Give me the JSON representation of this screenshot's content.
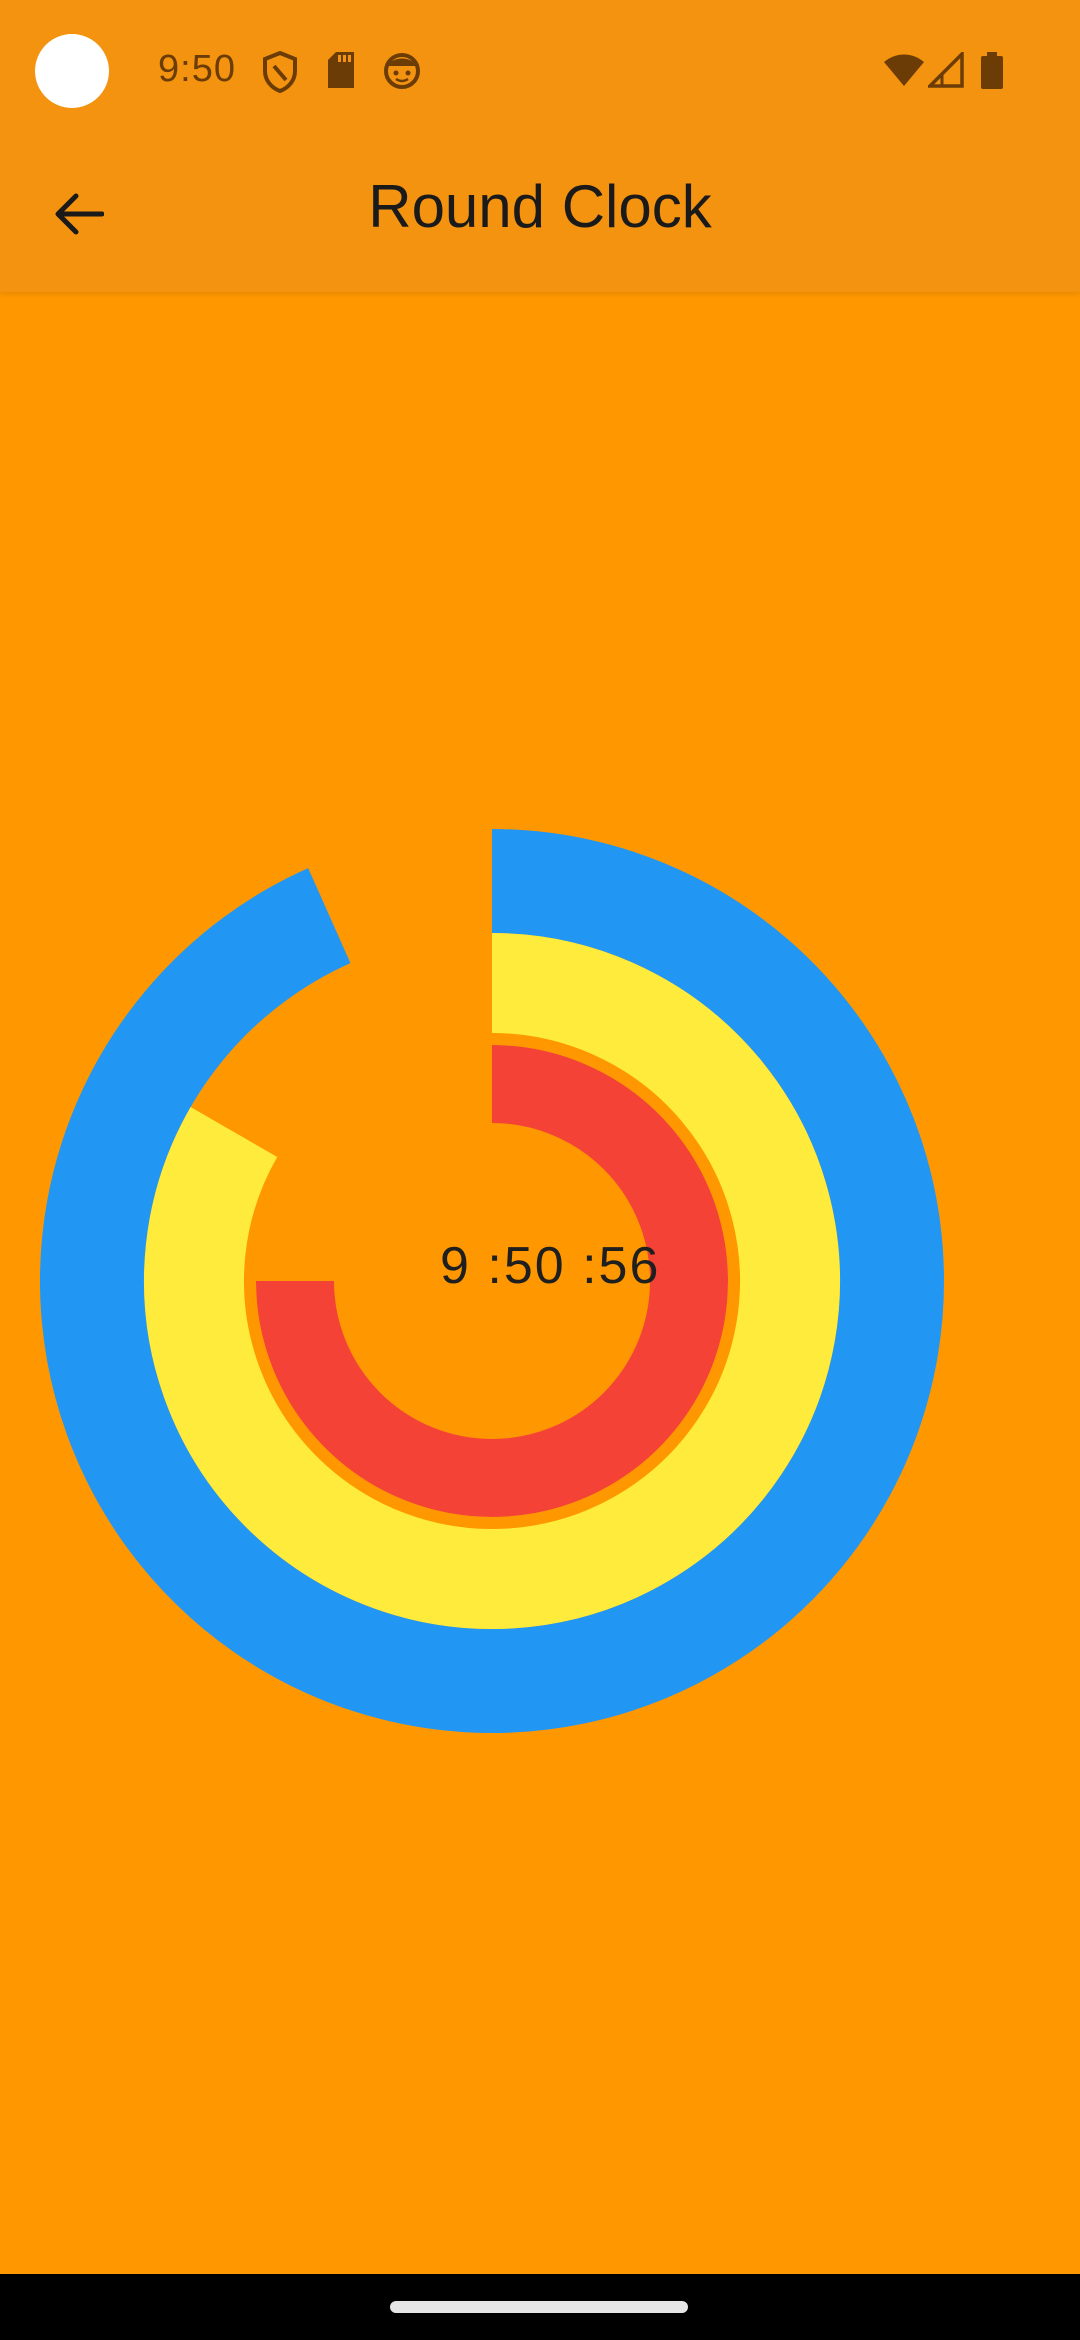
{
  "status_bar": {
    "time": "9:50",
    "left_icons": [
      "shield-icon",
      "sd-card-icon",
      "face-icon"
    ],
    "right_icons": [
      "wifi-icon",
      "signal-icon",
      "battery-icon"
    ]
  },
  "app_bar": {
    "title": "Round Clock",
    "back_icon": "arrow-left-icon"
  },
  "clock": {
    "time_text": "9 :50 :56",
    "hours": 9,
    "minutes": 50,
    "seconds": 56,
    "colors": {
      "seconds_ring": "#2196f3",
      "minutes_ring": "#ffeb3b",
      "hours_ring": "#f44336",
      "background": "#ff9800"
    }
  }
}
